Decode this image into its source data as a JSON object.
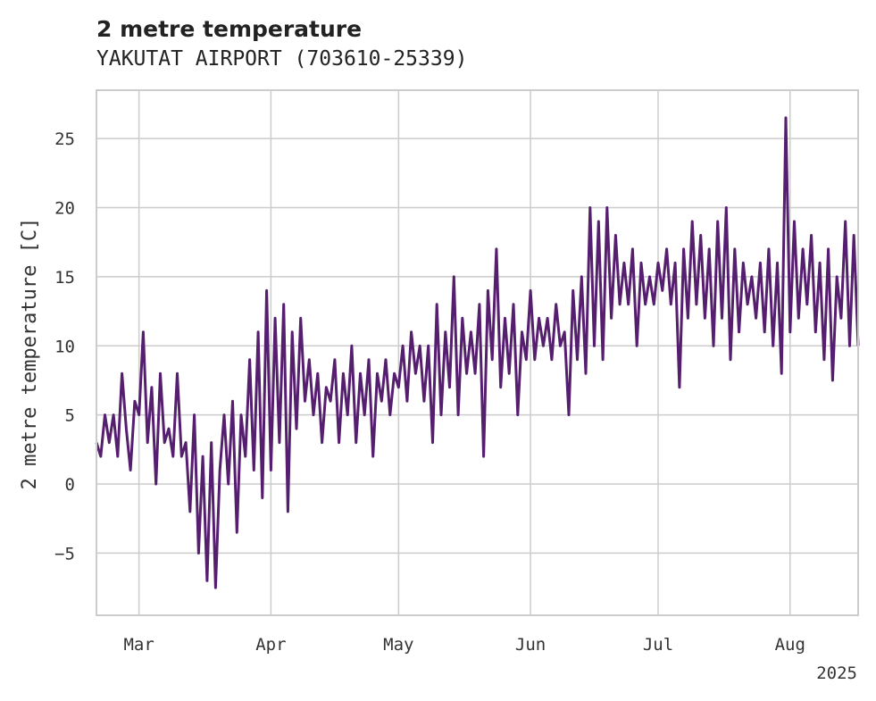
{
  "chart_data": {
    "type": "line",
    "title": "2 metre temperature",
    "subtitle": "YAKUTAT AIRPORT (703610-25339)",
    "ylabel": "2 metre temperature [C]",
    "xlabel": "",
    "x_range": [
      "2025-02-19",
      "2025-08-17"
    ],
    "ylim": [
      -9.5,
      28.5
    ],
    "grid": true,
    "x_ticks": [
      {
        "date": "2025-03-01",
        "label": "Mar"
      },
      {
        "date": "2025-04-01",
        "label": "Apr"
      },
      {
        "date": "2025-05-01",
        "label": "May"
      },
      {
        "date": "2025-06-01",
        "label": "Jun"
      },
      {
        "date": "2025-07-01",
        "label": "Jul"
      },
      {
        "date": "2025-08-01",
        "label": "Aug"
      }
    ],
    "x_offset_label": "2025",
    "y_ticks": [
      -5,
      0,
      5,
      10,
      15,
      20,
      25
    ],
    "series": [
      {
        "name": "",
        "color": "#561e6e",
        "points": [
          [
            "2025-02-19",
            3
          ],
          [
            "2025-02-20",
            2
          ],
          [
            "2025-02-21",
            5
          ],
          [
            "2025-02-22",
            3
          ],
          [
            "2025-02-23",
            5
          ],
          [
            "2025-02-24",
            2
          ],
          [
            "2025-02-25",
            8
          ],
          [
            "2025-02-26",
            4
          ],
          [
            "2025-02-27",
            1
          ],
          [
            "2025-02-28",
            6
          ],
          [
            "2025-03-01",
            5
          ],
          [
            "2025-03-02",
            11
          ],
          [
            "2025-03-03",
            3
          ],
          [
            "2025-03-04",
            7
          ],
          [
            "2025-03-05",
            0
          ],
          [
            "2025-03-06",
            8
          ],
          [
            "2025-03-07",
            3
          ],
          [
            "2025-03-08",
            4
          ],
          [
            "2025-03-09",
            2
          ],
          [
            "2025-03-10",
            8
          ],
          [
            "2025-03-11",
            2
          ],
          [
            "2025-03-12",
            3
          ],
          [
            "2025-03-13",
            -2
          ],
          [
            "2025-03-14",
            5
          ],
          [
            "2025-03-15",
            -5
          ],
          [
            "2025-03-16",
            2
          ],
          [
            "2025-03-17",
            -7
          ],
          [
            "2025-03-18",
            3
          ],
          [
            "2025-03-19",
            -7.5
          ],
          [
            "2025-03-20",
            1
          ],
          [
            "2025-03-21",
            5
          ],
          [
            "2025-03-22",
            0
          ],
          [
            "2025-03-23",
            6
          ],
          [
            "2025-03-24",
            -3.5
          ],
          [
            "2025-03-25",
            5
          ],
          [
            "2025-03-26",
            2
          ],
          [
            "2025-03-27",
            9
          ],
          [
            "2025-03-28",
            1
          ],
          [
            "2025-03-29",
            11
          ],
          [
            "2025-03-30",
            -1
          ],
          [
            "2025-03-31",
            14
          ],
          [
            "2025-04-01",
            1
          ],
          [
            "2025-04-02",
            12
          ],
          [
            "2025-04-03",
            3
          ],
          [
            "2025-04-04",
            13
          ],
          [
            "2025-04-05",
            -2
          ],
          [
            "2025-04-06",
            11
          ],
          [
            "2025-04-07",
            4
          ],
          [
            "2025-04-08",
            12
          ],
          [
            "2025-04-09",
            6
          ],
          [
            "2025-04-10",
            9
          ],
          [
            "2025-04-11",
            5
          ],
          [
            "2025-04-12",
            8
          ],
          [
            "2025-04-13",
            3
          ],
          [
            "2025-04-14",
            7
          ],
          [
            "2025-04-15",
            6
          ],
          [
            "2025-04-16",
            9
          ],
          [
            "2025-04-17",
            3
          ],
          [
            "2025-04-18",
            8
          ],
          [
            "2025-04-19",
            5
          ],
          [
            "2025-04-20",
            10
          ],
          [
            "2025-04-21",
            3
          ],
          [
            "2025-04-22",
            8
          ],
          [
            "2025-04-23",
            5
          ],
          [
            "2025-04-24",
            9
          ],
          [
            "2025-04-25",
            2
          ],
          [
            "2025-04-26",
            8
          ],
          [
            "2025-04-27",
            6
          ],
          [
            "2025-04-28",
            9
          ],
          [
            "2025-04-29",
            5
          ],
          [
            "2025-04-30",
            8
          ],
          [
            "2025-05-01",
            7
          ],
          [
            "2025-05-02",
            10
          ],
          [
            "2025-05-03",
            6
          ],
          [
            "2025-05-04",
            11
          ],
          [
            "2025-05-05",
            8
          ],
          [
            "2025-05-06",
            10
          ],
          [
            "2025-05-07",
            6
          ],
          [
            "2025-05-08",
            10
          ],
          [
            "2025-05-09",
            3
          ],
          [
            "2025-05-10",
            13
          ],
          [
            "2025-05-11",
            5
          ],
          [
            "2025-05-12",
            11
          ],
          [
            "2025-05-13",
            7
          ],
          [
            "2025-05-14",
            15
          ],
          [
            "2025-05-15",
            5
          ],
          [
            "2025-05-16",
            12
          ],
          [
            "2025-05-17",
            8
          ],
          [
            "2025-05-18",
            11
          ],
          [
            "2025-05-19",
            8
          ],
          [
            "2025-05-20",
            13
          ],
          [
            "2025-05-21",
            2
          ],
          [
            "2025-05-22",
            14
          ],
          [
            "2025-05-23",
            9
          ],
          [
            "2025-05-24",
            17
          ],
          [
            "2025-05-25",
            7
          ],
          [
            "2025-05-26",
            12
          ],
          [
            "2025-05-27",
            8
          ],
          [
            "2025-05-28",
            13
          ],
          [
            "2025-05-29",
            5
          ],
          [
            "2025-05-30",
            11
          ],
          [
            "2025-05-31",
            9
          ],
          [
            "2025-06-01",
            14
          ],
          [
            "2025-06-02",
            9
          ],
          [
            "2025-06-03",
            12
          ],
          [
            "2025-06-04",
            10
          ],
          [
            "2025-06-05",
            12
          ],
          [
            "2025-06-06",
            9
          ],
          [
            "2025-06-07",
            13
          ],
          [
            "2025-06-08",
            10
          ],
          [
            "2025-06-09",
            11
          ],
          [
            "2025-06-10",
            5
          ],
          [
            "2025-06-11",
            14
          ],
          [
            "2025-06-12",
            9
          ],
          [
            "2025-06-13",
            15
          ],
          [
            "2025-06-14",
            8
          ],
          [
            "2025-06-15",
            20
          ],
          [
            "2025-06-16",
            10
          ],
          [
            "2025-06-17",
            19
          ],
          [
            "2025-06-18",
            9
          ],
          [
            "2025-06-19",
            20
          ],
          [
            "2025-06-20",
            12
          ],
          [
            "2025-06-21",
            18
          ],
          [
            "2025-06-22",
            13
          ],
          [
            "2025-06-23",
            16
          ],
          [
            "2025-06-24",
            13
          ],
          [
            "2025-06-25",
            17
          ],
          [
            "2025-06-26",
            10
          ],
          [
            "2025-06-27",
            16
          ],
          [
            "2025-06-28",
            13
          ],
          [
            "2025-06-29",
            15
          ],
          [
            "2025-06-30",
            13
          ],
          [
            "2025-07-01",
            16
          ],
          [
            "2025-07-02",
            14
          ],
          [
            "2025-07-03",
            17
          ],
          [
            "2025-07-04",
            13
          ],
          [
            "2025-07-05",
            16
          ],
          [
            "2025-07-06",
            7
          ],
          [
            "2025-07-07",
            17
          ],
          [
            "2025-07-08",
            12
          ],
          [
            "2025-07-09",
            19
          ],
          [
            "2025-07-10",
            13
          ],
          [
            "2025-07-11",
            18
          ],
          [
            "2025-07-12",
            12
          ],
          [
            "2025-07-13",
            17
          ],
          [
            "2025-07-14",
            10
          ],
          [
            "2025-07-15",
            19
          ],
          [
            "2025-07-16",
            12
          ],
          [
            "2025-07-17",
            20
          ],
          [
            "2025-07-18",
            9
          ],
          [
            "2025-07-19",
            17
          ],
          [
            "2025-07-20",
            11
          ],
          [
            "2025-07-21",
            16
          ],
          [
            "2025-07-22",
            13
          ],
          [
            "2025-07-23",
            15
          ],
          [
            "2025-07-24",
            12
          ],
          [
            "2025-07-25",
            16
          ],
          [
            "2025-07-26",
            11
          ],
          [
            "2025-07-27",
            17
          ],
          [
            "2025-07-28",
            10
          ],
          [
            "2025-07-29",
            16
          ],
          [
            "2025-07-30",
            8
          ],
          [
            "2025-07-31",
            26.5
          ],
          [
            "2025-08-01",
            11
          ],
          [
            "2025-08-02",
            19
          ],
          [
            "2025-08-03",
            12
          ],
          [
            "2025-08-04",
            17
          ],
          [
            "2025-08-05",
            13
          ],
          [
            "2025-08-06",
            18
          ],
          [
            "2025-08-07",
            11
          ],
          [
            "2025-08-08",
            16
          ],
          [
            "2025-08-09",
            9
          ],
          [
            "2025-08-10",
            17
          ],
          [
            "2025-08-11",
            7.5
          ],
          [
            "2025-08-12",
            15
          ],
          [
            "2025-08-13",
            12
          ],
          [
            "2025-08-14",
            19
          ],
          [
            "2025-08-15",
            10
          ],
          [
            "2025-08-16",
            18
          ],
          [
            "2025-08-17",
            10
          ]
        ]
      }
    ]
  }
}
